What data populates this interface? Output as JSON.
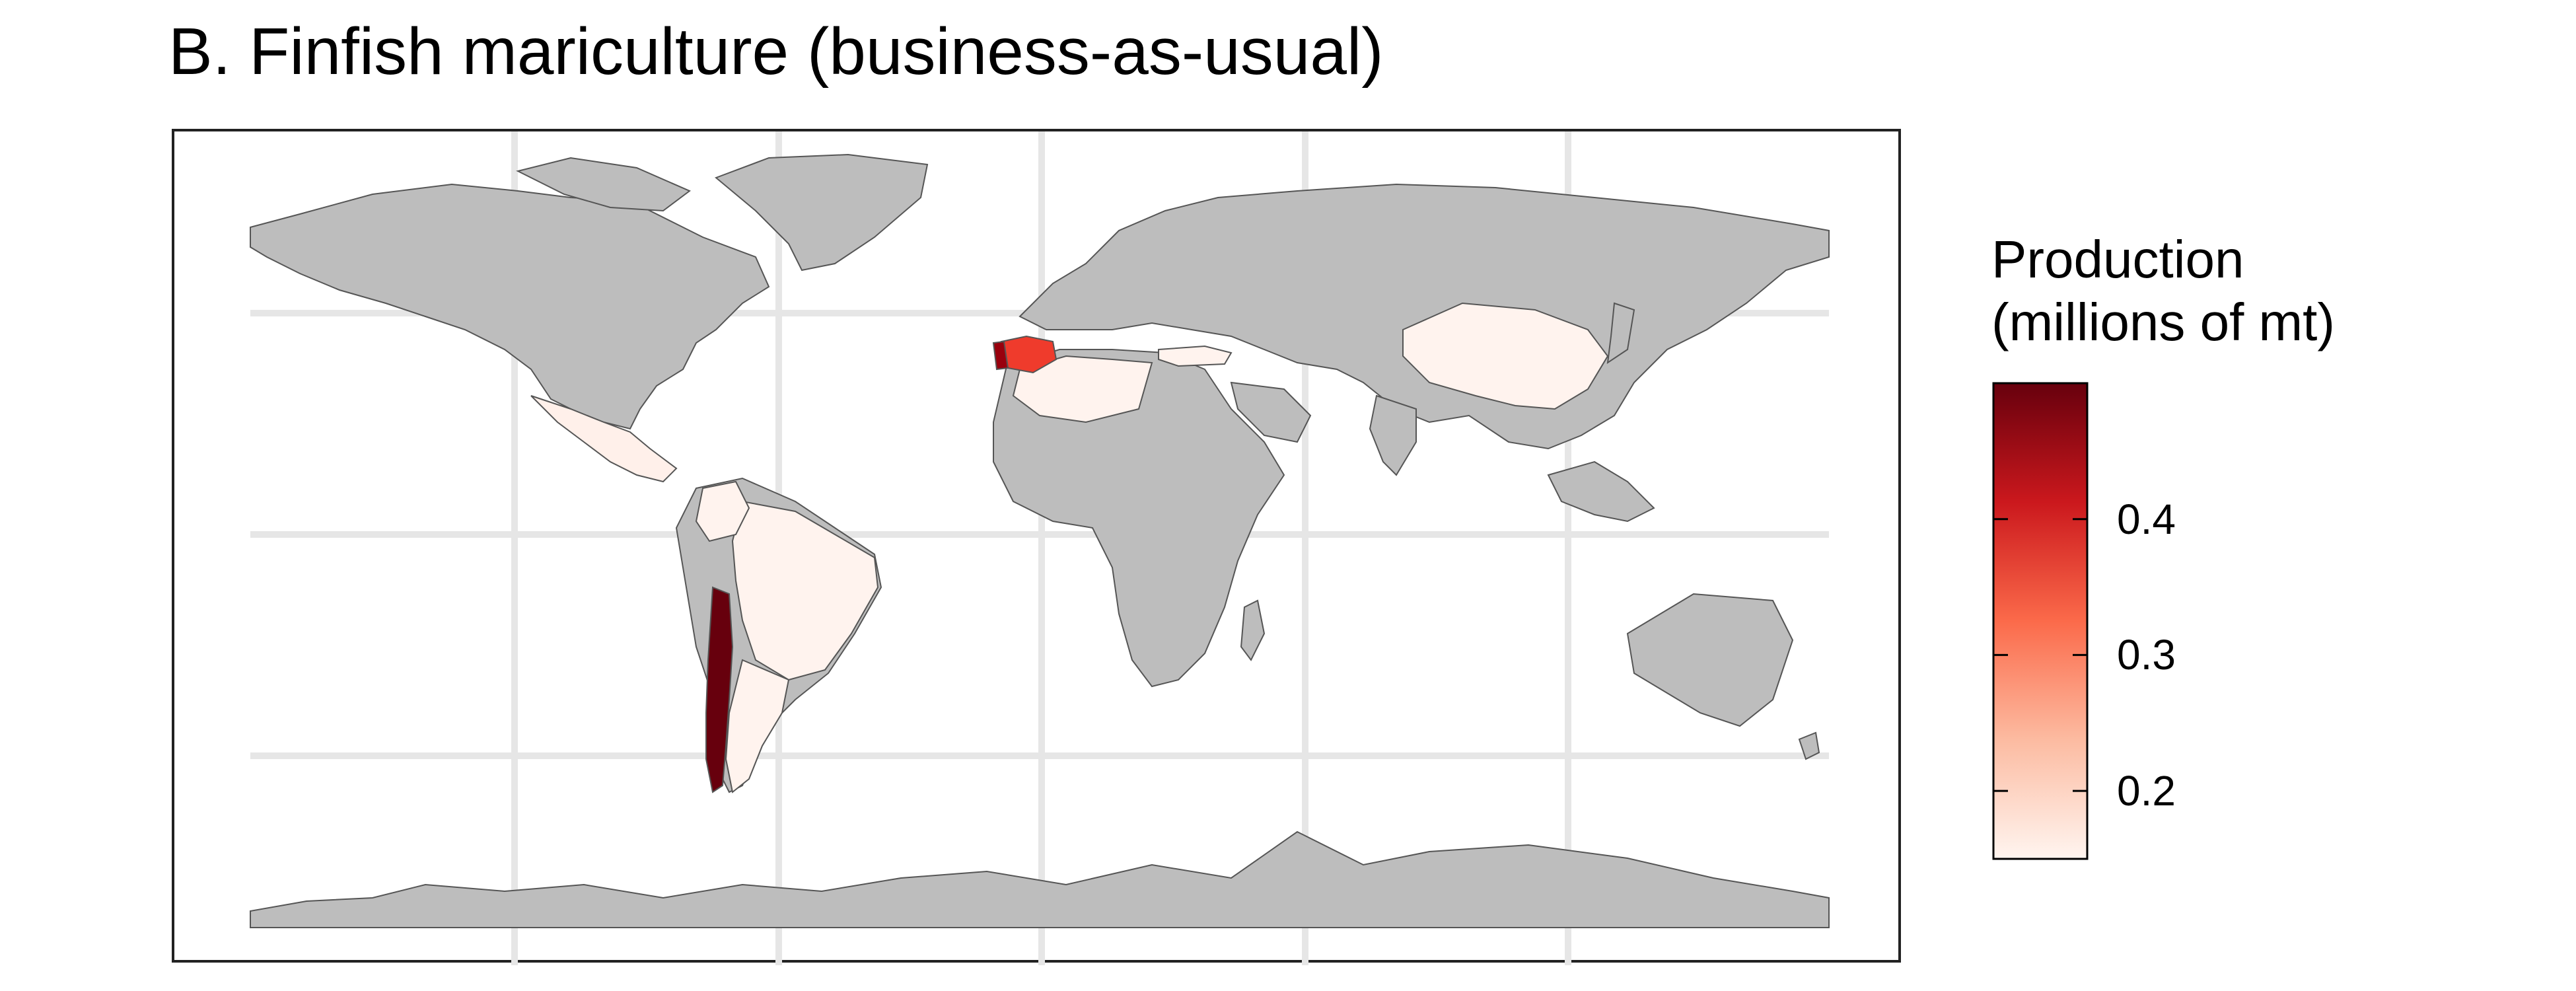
{
  "title": "B. Finfish mariculture (business-as-usual)",
  "legend": {
    "title_line1": "Production",
    "title_line2": "(millions of mt)",
    "ticks": [
      {
        "label": "0.4",
        "value": 0.4
      },
      {
        "label": "0.3",
        "value": 0.3
      },
      {
        "label": "0.2",
        "value": 0.2
      }
    ],
    "range": [
      0.15,
      0.5
    ],
    "colors": [
      "#fff5f0",
      "#fcbba1",
      "#fb6a4a",
      "#cb181d",
      "#67000d"
    ]
  },
  "map": {
    "land_color": "#bdbdbd",
    "graticule_color": "#e6e6e6",
    "highlighted_regions": [
      {
        "region": "Chile",
        "value": 0.5,
        "color": "#67000d"
      },
      {
        "region": "Spain",
        "value": 0.33,
        "color": "#ef3b2c"
      },
      {
        "region": "Portugal",
        "value": 0.45,
        "color": "#99000d"
      },
      {
        "region": "Mexico",
        "value": 0.17,
        "color": "#fff0ea"
      },
      {
        "region": "Brazil",
        "value": 0.16,
        "color": "#fff3ee"
      },
      {
        "region": "Argentina",
        "value": 0.16,
        "color": "#fff3ee"
      },
      {
        "region": "Colombia",
        "value": 0.16,
        "color": "#fff3ee"
      },
      {
        "region": "Algeria",
        "value": 0.16,
        "color": "#fff3ee"
      },
      {
        "region": "China",
        "value": 0.16,
        "color": "#fff3ee"
      },
      {
        "region": "Turkey",
        "value": 0.16,
        "color": "#fff3ee"
      }
    ]
  }
}
